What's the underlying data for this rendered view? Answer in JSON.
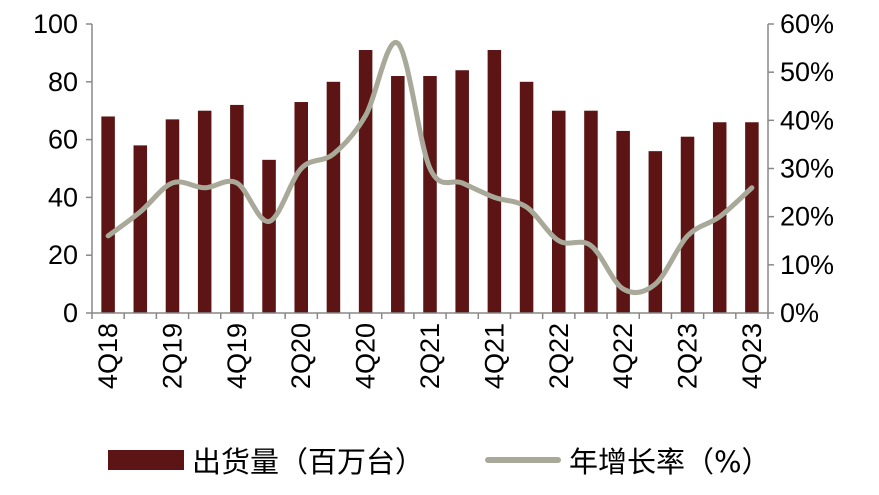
{
  "chart_data": {
    "type": "bar+line",
    "categories": [
      "4Q18",
      "1Q19",
      "2Q19",
      "3Q19",
      "4Q19",
      "1Q20",
      "2Q20",
      "3Q20",
      "4Q20",
      "1Q21",
      "2Q21",
      "3Q21",
      "4Q21",
      "1Q22",
      "2Q22",
      "3Q22",
      "4Q22",
      "1Q23",
      "2Q23",
      "3Q23",
      "4Q23"
    ],
    "x_tick_labels": [
      "4Q18",
      "2Q19",
      "4Q19",
      "2Q20",
      "4Q20",
      "2Q21",
      "4Q21",
      "2Q22",
      "4Q22",
      "2Q23",
      "4Q23"
    ],
    "series": [
      {
        "name": "出货量（百万台）",
        "type": "bar",
        "axis": "left",
        "color": "#5c1414",
        "values": [
          68,
          58,
          67,
          70,
          72,
          53,
          73,
          80,
          91,
          82,
          82,
          84,
          91,
          80,
          70,
          70,
          63,
          56,
          61,
          66,
          66
        ]
      },
      {
        "name": "年增长率（%）",
        "type": "line",
        "axis": "right",
        "color": "#a9a99a",
        "values": [
          16,
          21,
          27,
          26,
          27,
          19,
          30,
          33,
          41,
          56,
          30,
          27,
          24,
          22,
          15,
          14,
          5,
          6,
          16,
          20,
          26
        ]
      }
    ],
    "y_left": {
      "lim": [
        0,
        100
      ],
      "ticks": [
        "0",
        "20",
        "40",
        "60",
        "80",
        "100"
      ]
    },
    "y_right": {
      "lim": [
        0,
        60
      ],
      "ticks": [
        "0%",
        "10%",
        "20%",
        "30%",
        "40%",
        "50%",
        "60%"
      ]
    },
    "grid": false,
    "legend_position": "bottom"
  }
}
